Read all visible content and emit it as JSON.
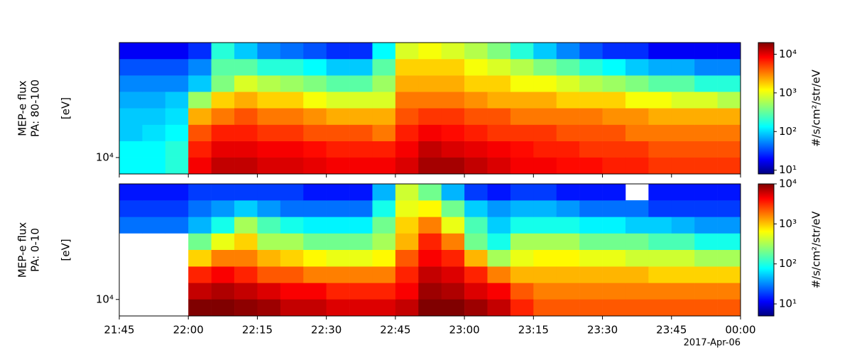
{
  "chart_data": [
    {
      "type": "spectrogram",
      "colormap": "jet",
      "ylabel": [
        "MEP-e flux",
        "PA: 80-100"
      ],
      "yunit": "[eV]",
      "x": [
        "21:45",
        "21:50",
        "21:55",
        "22:00",
        "22:05",
        "22:10",
        "22:15",
        "22:20",
        "22:25",
        "22:30",
        "22:35",
        "22:40",
        "22:45",
        "22:50",
        "22:55",
        "23:00",
        "23:05",
        "23:10",
        "23:15",
        "23:20",
        "23:25",
        "23:30",
        "23:35",
        "23:40",
        "23:45",
        "23:50",
        "23:55"
      ],
      "xlim": [
        "21:45",
        "00:00"
      ],
      "y": [
        8700,
        11600,
        15400,
        20600,
        27500,
        36600,
        48800,
        65100
      ],
      "ylim": [
        7500,
        75000
      ],
      "ylog": true,
      "yticks": [
        {
          "value": 10000,
          "label": "10⁴"
        }
      ],
      "values": [
        [
          150,
          150,
          200,
          8000,
          12000,
          12000,
          10000,
          10000,
          9000,
          8000,
          8000,
          8000,
          10000,
          15000,
          15000,
          12000,
          10000,
          8000,
          8000,
          7000,
          7000,
          6000,
          6000,
          5000,
          5000,
          5000,
          5000
        ],
        [
          150,
          150,
          200,
          6000,
          9000,
          9000,
          8000,
          8000,
          7000,
          6000,
          6000,
          6000,
          8000,
          12000,
          10000,
          9000,
          8000,
          7000,
          6000,
          6000,
          5000,
          5000,
          5000,
          4000,
          4000,
          4000,
          4000
        ],
        [
          100,
          120,
          150,
          4000,
          6000,
          6000,
          5000,
          5000,
          4000,
          4000,
          4000,
          3000,
          6000,
          8000,
          7000,
          6000,
          5000,
          5000,
          5000,
          4000,
          4000,
          4000,
          3000,
          3000,
          3000,
          3000,
          3000
        ],
        [
          100,
          100,
          120,
          2000,
          3000,
          4000,
          3000,
          3000,
          2500,
          2000,
          2000,
          2000,
          4000,
          5000,
          5000,
          4000,
          4000,
          3000,
          3000,
          3000,
          3000,
          2500,
          2500,
          2000,
          2000,
          2000,
          2000
        ],
        [
          80,
          80,
          100,
          500,
          1500,
          2000,
          1500,
          1500,
          1000,
          800,
          800,
          800,
          3000,
          3000,
          3000,
          2500,
          2000,
          2000,
          2000,
          1500,
          1500,
          1500,
          1000,
          1000,
          800,
          800,
          600
        ],
        [
          60,
          60,
          60,
          100,
          400,
          800,
          600,
          500,
          400,
          300,
          300,
          500,
          2000,
          2000,
          2000,
          1500,
          1500,
          1000,
          1000,
          800,
          600,
          500,
          400,
          300,
          300,
          200,
          200
        ],
        [
          40,
          40,
          40,
          60,
          300,
          300,
          200,
          200,
          150,
          100,
          100,
          300,
          1500,
          1500,
          1500,
          1000,
          800,
          600,
          400,
          300,
          200,
          150,
          100,
          80,
          80,
          60,
          60
        ],
        [
          20,
          20,
          20,
          30,
          200,
          100,
          60,
          50,
          40,
          30,
          30,
          150,
          800,
          1000,
          800,
          600,
          400,
          200,
          100,
          60,
          40,
          30,
          30,
          20,
          20,
          20,
          20
        ]
      ],
      "colorbar": {
        "label": "#/s/cm²/str/eV",
        "lim": [
          8,
          20000
        ],
        "log": true,
        "ticks": [
          {
            "value": 10,
            "label": "10¹"
          },
          {
            "value": 100,
            "label": "10²"
          },
          {
            "value": 1000,
            "label": "10³"
          },
          {
            "value": 10000,
            "label": "10⁴"
          }
        ]
      }
    },
    {
      "type": "spectrogram",
      "colormap": "jet",
      "ylabel": [
        "MEP-e flux",
        "PA: 0-10"
      ],
      "yunit": "[eV]",
      "x": [
        "21:45",
        "21:50",
        "21:55",
        "22:00",
        "22:05",
        "22:10",
        "22:15",
        "22:20",
        "22:25",
        "22:30",
        "22:35",
        "22:40",
        "22:45",
        "22:50",
        "22:55",
        "23:00",
        "23:05",
        "23:10",
        "23:15",
        "23:20",
        "23:25",
        "23:30",
        "23:35",
        "23:40",
        "23:45",
        "23:50",
        "23:55"
      ],
      "xlim": [
        "21:45",
        "00:00"
      ],
      "xticks": [
        "21:45",
        "22:00",
        "22:15",
        "22:30",
        "22:45",
        "23:00",
        "23:15",
        "23:30",
        "23:45",
        "00:00"
      ],
      "date": "2017-Apr-06",
      "y": [
        8700,
        11600,
        15400,
        20600,
        27500,
        36600,
        48800,
        65100
      ],
      "ylim": [
        7500,
        75000
      ],
      "ylog": true,
      "yticks": [
        {
          "value": 10000,
          "label": "10⁴"
        }
      ],
      "values": [
        [
          null,
          null,
          null,
          10000,
          10000,
          9000,
          8000,
          6000,
          6000,
          5000,
          5000,
          5000,
          6000,
          10000,
          10000,
          8000,
          6000,
          3000,
          2000,
          2000,
          2000,
          2000,
          2000,
          2000,
          2000,
          2000,
          2000
        ],
        [
          null,
          null,
          null,
          6000,
          7000,
          6000,
          5000,
          4000,
          4000,
          3000,
          3000,
          3000,
          4000,
          8000,
          7000,
          5000,
          4000,
          2000,
          1500,
          1500,
          1500,
          1500,
          1500,
          1500,
          1500,
          1500,
          1500
        ],
        [
          null,
          null,
          null,
          3000,
          4000,
          3000,
          2000,
          2000,
          1500,
          1500,
          1500,
          1500,
          3000,
          6000,
          5000,
          3000,
          1500,
          1000,
          1000,
          1000,
          1000,
          1000,
          1000,
          800,
          800,
          800,
          800
        ],
        [
          null,
          null,
          null,
          800,
          1500,
          1500,
          1000,
          800,
          600,
          500,
          500,
          600,
          2000,
          4000,
          3000,
          1000,
          300,
          500,
          600,
          600,
          500,
          500,
          400,
          400,
          400,
          300,
          300
        ],
        [
          null,
          null,
          null,
          200,
          500,
          800,
          300,
          300,
          200,
          200,
          200,
          300,
          1000,
          3000,
          1500,
          200,
          100,
          300,
          300,
          300,
          200,
          200,
          200,
          150,
          150,
          100,
          100
        ],
        [
          30,
          30,
          30,
          50,
          100,
          300,
          150,
          100,
          80,
          80,
          80,
          200,
          800,
          1500,
          500,
          150,
          60,
          100,
          100,
          100,
          80,
          80,
          60,
          60,
          50,
          40,
          40
        ],
        [
          20,
          20,
          20,
          30,
          40,
          60,
          40,
          30,
          30,
          30,
          30,
          100,
          500,
          600,
          200,
          60,
          40,
          50,
          50,
          40,
          30,
          30,
          30,
          20,
          20,
          20,
          20
        ],
        [
          15,
          15,
          15,
          20,
          20,
          20,
          20,
          20,
          15,
          15,
          15,
          50,
          400,
          200,
          50,
          20,
          15,
          20,
          20,
          15,
          15,
          15,
          null,
          15,
          15,
          15,
          15
        ]
      ],
      "colorbar": {
        "label": "#/s/cm²/str/eV",
        "lim": [
          5,
          10000
        ],
        "log": true,
        "ticks": [
          {
            "value": 10,
            "label": "10¹"
          },
          {
            "value": 100,
            "label": "10²"
          },
          {
            "value": 1000,
            "label": "10³"
          },
          {
            "value": 10000,
            "label": "10⁴"
          }
        ]
      }
    }
  ]
}
